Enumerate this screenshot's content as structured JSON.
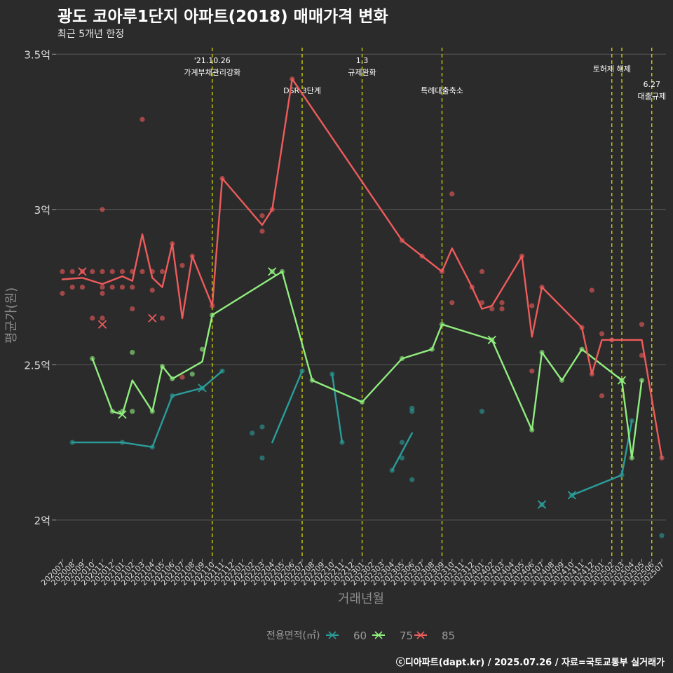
{
  "header": {
    "title": "광도 코아루1단지 아파트(2018) 매매가격 변화",
    "subtitle": "최근 5개년 한정"
  },
  "footer": {
    "caption": "ⓒ디아파트(dapt.kr) / 2025.07.26 / 자료=국토교통부 실거래가"
  },
  "chart_data": {
    "type": "line",
    "xlabel": "거래년월",
    "ylabel": "평균가(원)",
    "y_ticks": [
      {
        "value": 2.0,
        "label": "2억"
      },
      {
        "value": 2.5,
        "label": "2.5억"
      },
      {
        "value": 3.0,
        "label": "3억"
      },
      {
        "value": 3.5,
        "label": "3.5억"
      }
    ],
    "ylim": [
      1.88,
      3.53
    ],
    "categories": [
      "202007",
      "202008",
      "202009",
      "202010",
      "202011",
      "202012",
      "202101",
      "202102",
      "202103",
      "202104",
      "202105",
      "202106",
      "202107",
      "202108",
      "202109",
      "202110",
      "202111",
      "202112",
      "202201",
      "202202",
      "202203",
      "202204",
      "202205",
      "202206",
      "202207",
      "202208",
      "202209",
      "202210",
      "202211",
      "202212",
      "202301",
      "202302",
      "202303",
      "202304",
      "202305",
      "202306",
      "202307",
      "202308",
      "202309",
      "202310",
      "202311",
      "202312",
      "202401",
      "202402",
      "202403",
      "202404",
      "202405",
      "202406",
      "202407",
      "202408",
      "202409",
      "202410",
      "202411",
      "202412",
      "202501",
      "202502",
      "202503",
      "202504",
      "202505",
      "202506",
      "202507"
    ],
    "annotations": [
      {
        "category": "202110",
        "lines": [
          "'21.10.26",
          "가계부채관리강화"
        ],
        "level": 0
      },
      {
        "category": "202207",
        "lines": [
          "DSR 3단계"
        ],
        "level": 2
      },
      {
        "category": "202301",
        "lines": [
          "1.3",
          "규제완화"
        ],
        "level": 0
      },
      {
        "category": "202309",
        "lines": [
          "특례대출축소"
        ],
        "level": 2
      },
      {
        "category": "202502",
        "lines": [
          "토허제 해제"
        ],
        "level": 1
      },
      {
        "category": "202503",
        "lines": [],
        "level": 1
      },
      {
        "category": "202506",
        "lines": [
          "6.27",
          "대출규제"
        ],
        "level": 3
      }
    ],
    "legend": {
      "title": "전용면적(㎡)",
      "position": "bottom"
    },
    "series": [
      {
        "name": "60",
        "color": "#2a9d9a",
        "segments": [
          [
            [
              "202008",
              2.25
            ],
            [
              "202101",
              2.25
            ],
            [
              "202104",
              2.235
            ],
            [
              "202106",
              2.4
            ],
            [
              "202109",
              2.425
            ],
            [
              "202111",
              2.48
            ]
          ],
          [
            [
              "202204",
              2.25
            ],
            [
              "202207",
              2.48
            ]
          ],
          [
            [
              "202210",
              2.47
            ],
            [
              "202211",
              2.25
            ]
          ],
          [
            [
              "202304",
              2.16
            ],
            [
              "202306",
              2.28
            ]
          ],
          [
            [
              "202407",
              2.05
            ]
          ],
          [
            [
              "202410",
              2.08
            ],
            [
              "202503",
              2.145
            ],
            [
              "202504",
              2.32
            ]
          ]
        ],
        "points": [
          [
            "202008",
            2.25
          ],
          [
            "202101",
            2.25
          ],
          [
            "202104",
            2.235
          ],
          [
            "202106",
            2.4
          ],
          [
            "202109",
            2.425
          ],
          [
            "202111",
            2.48
          ],
          [
            "202202",
            2.28
          ],
          [
            "202203",
            2.3
          ],
          [
            "202203",
            2.2
          ],
          [
            "202207",
            2.48
          ],
          [
            "202210",
            2.47
          ],
          [
            "202211",
            2.25
          ],
          [
            "202304",
            2.16
          ],
          [
            "202305",
            2.25
          ],
          [
            "202305",
            2.2
          ],
          [
            "202306",
            2.36
          ],
          [
            "202306",
            2.35
          ],
          [
            "202306",
            2.13
          ],
          [
            "202401",
            2.35
          ],
          [
            "202407",
            2.05
          ],
          [
            "202410",
            2.08
          ],
          [
            "202503",
            2.145
          ],
          [
            "202504",
            2.32
          ],
          [
            "202507",
            1.95
          ]
        ],
        "markers": [
          [
            "202109",
            2.425
          ],
          [
            "202407",
            2.05
          ],
          [
            "202410",
            2.08
          ]
        ]
      },
      {
        "name": "75",
        "color": "#90ee7e",
        "segments": [
          [
            [
              "202010",
              2.52
            ],
            [
              "202012",
              2.35
            ],
            [
              "202101",
              2.34
            ],
            [
              "202102",
              2.45
            ],
            [
              "202104",
              2.35
            ],
            [
              "202105",
              2.495
            ],
            [
              "202106",
              2.455
            ],
            [
              "202109",
              2.51
            ],
            [
              "202110",
              2.66
            ],
            [
              "202205",
              2.8
            ],
            [
              "202208",
              2.45
            ],
            [
              "202301",
              2.38
            ],
            [
              "202305",
              2.52
            ],
            [
              "202308",
              2.55
            ],
            [
              "202309",
              2.63
            ],
            [
              "202402",
              2.58
            ],
            [
              "202406",
              2.29
            ],
            [
              "202407",
              2.54
            ],
            [
              "202409",
              2.45
            ],
            [
              "202411",
              2.55
            ],
            [
              "202503",
              2.45
            ],
            [
              "202504",
              2.2
            ],
            [
              "202505",
              2.45
            ]
          ]
        ],
        "points": [
          [
            "202010",
            2.52
          ],
          [
            "202012",
            2.35
          ],
          [
            "202101",
            2.35
          ],
          [
            "202102",
            2.35
          ],
          [
            "202102",
            2.54
          ],
          [
            "202104",
            2.35
          ],
          [
            "202105",
            2.495
          ],
          [
            "202106",
            2.455
          ],
          [
            "202108",
            2.47
          ],
          [
            "202109",
            2.55
          ],
          [
            "202110",
            2.66
          ],
          [
            "202204",
            2.8
          ],
          [
            "202205",
            2.8
          ],
          [
            "202208",
            2.45
          ],
          [
            "202301",
            2.38
          ],
          [
            "202305",
            2.52
          ],
          [
            "202308",
            2.55
          ],
          [
            "202309",
            2.63
          ],
          [
            "202402",
            2.58
          ],
          [
            "202406",
            2.29
          ],
          [
            "202407",
            2.54
          ],
          [
            "202409",
            2.45
          ],
          [
            "202411",
            2.55
          ],
          [
            "202503",
            2.45
          ],
          [
            "202504",
            2.2
          ],
          [
            "202505",
            2.45
          ]
        ],
        "markers": [
          [
            "202101",
            2.34
          ],
          [
            "202204",
            2.8
          ],
          [
            "202402",
            2.58
          ],
          [
            "202503",
            2.45
          ]
        ]
      },
      {
        "name": "85",
        "color": "#ef5b5b",
        "segments": [
          [
            [
              "202007",
              2.775
            ],
            [
              "202009",
              2.78
            ],
            [
              "202011",
              2.76
            ],
            [
              "202101",
              2.785
            ],
            [
              "202102",
              2.77
            ],
            [
              "202103",
              2.92
            ],
            [
              "202104",
              2.78
            ],
            [
              "202105",
              2.75
            ],
            [
              "202106",
              2.89
            ],
            [
              "202107",
              2.65
            ],
            [
              "202108",
              2.85
            ],
            [
              "202110",
              2.69
            ],
            [
              "202111",
              3.1
            ],
            [
              "202203",
              2.95
            ],
            [
              "202204",
              3.0
            ],
            [
              "202206",
              3.42
            ],
            [
              "202305",
              2.9
            ],
            [
              "202309",
              2.8
            ],
            [
              "202310",
              2.875
            ],
            [
              "202312",
              2.75
            ],
            [
              "202401",
              2.68
            ],
            [
              "202402",
              2.69
            ],
            [
              "202405",
              2.85
            ],
            [
              "202406",
              2.59
            ],
            [
              "202407",
              2.75
            ],
            [
              "202411",
              2.62
            ],
            [
              "202412",
              2.47
            ],
            [
              "202501",
              2.58
            ],
            [
              "202505",
              2.58
            ],
            [
              "202507",
              2.2
            ]
          ]
        ],
        "points": [
          [
            "202007",
            2.8
          ],
          [
            "202007",
            2.73
          ],
          [
            "202008",
            2.8
          ],
          [
            "202008",
            2.75
          ],
          [
            "202009",
            2.8
          ],
          [
            "202009",
            2.75
          ],
          [
            "202010",
            2.8
          ],
          [
            "202010",
            2.65
          ],
          [
            "202011",
            2.8
          ],
          [
            "202011",
            2.75
          ],
          [
            "202011",
            2.73
          ],
          [
            "202011",
            2.65
          ],
          [
            "202011",
            3.0
          ],
          [
            "202012",
            2.8
          ],
          [
            "202012",
            2.75
          ],
          [
            "202101",
            2.8
          ],
          [
            "202101",
            2.75
          ],
          [
            "202102",
            2.8
          ],
          [
            "202102",
            2.68
          ],
          [
            "202102",
            2.75
          ],
          [
            "202103",
            3.29
          ],
          [
            "202103",
            2.8
          ],
          [
            "202104",
            2.8
          ],
          [
            "202104",
            2.74
          ],
          [
            "202105",
            2.8
          ],
          [
            "202105",
            2.65
          ],
          [
            "202106",
            2.89
          ],
          [
            "202107",
            2.82
          ],
          [
            "202107",
            2.46
          ],
          [
            "202108",
            2.85
          ],
          [
            "202110",
            2.69
          ],
          [
            "202111",
            3.1
          ],
          [
            "202203",
            2.98
          ],
          [
            "202203",
            2.93
          ],
          [
            "202204",
            3.0
          ],
          [
            "202206",
            3.42
          ],
          [
            "202305",
            2.9
          ],
          [
            "202307",
            2.85
          ],
          [
            "202309",
            2.8
          ],
          [
            "202310",
            3.05
          ],
          [
            "202310",
            2.7
          ],
          [
            "202312",
            2.75
          ],
          [
            "202401",
            2.8
          ],
          [
            "202401",
            2.7
          ],
          [
            "202402",
            2.68
          ],
          [
            "202403",
            2.7
          ],
          [
            "202403",
            2.68
          ],
          [
            "202405",
            2.85
          ],
          [
            "202406",
            2.69
          ],
          [
            "202406",
            2.48
          ],
          [
            "202407",
            2.75
          ],
          [
            "202411",
            2.62
          ],
          [
            "202412",
            2.47
          ],
          [
            "202412",
            2.74
          ],
          [
            "202501",
            2.6
          ],
          [
            "202501",
            2.4
          ],
          [
            "202502",
            2.58
          ],
          [
            "202505",
            2.63
          ],
          [
            "202505",
            2.53
          ],
          [
            "202507",
            2.2
          ]
        ],
        "markers": [
          [
            "202009",
            2.8
          ],
          [
            "202011",
            2.63
          ],
          [
            "202104",
            2.65
          ]
        ]
      }
    ]
  }
}
